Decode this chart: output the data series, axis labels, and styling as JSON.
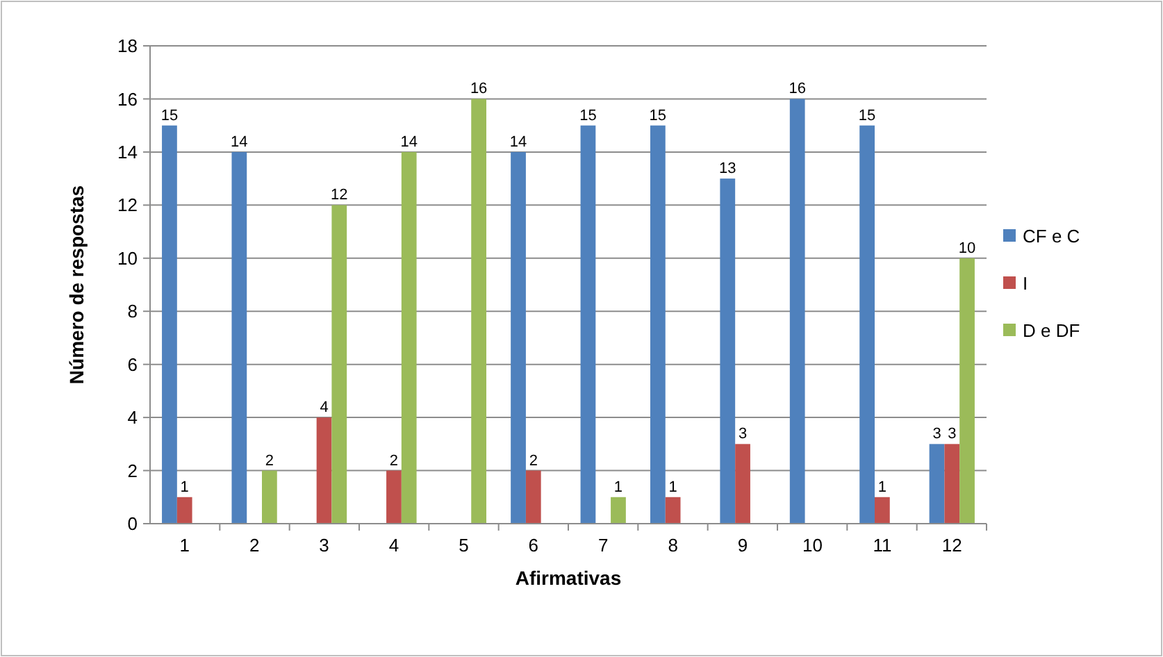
{
  "chart_data": {
    "type": "bar",
    "xlabel": "Afirmativas",
    "ylabel": "Número de respostas",
    "categories": [
      "1",
      "2",
      "3",
      "4",
      "5",
      "6",
      "7",
      "8",
      "9",
      "10",
      "11",
      "12"
    ],
    "series": [
      {
        "name": "CF e C",
        "color": "#4f81bd",
        "values": [
          15,
          14,
          0,
          0,
          0,
          14,
          15,
          15,
          13,
          16,
          15,
          3
        ],
        "value_labels": [
          "15",
          "14",
          null,
          null,
          null,
          "14",
          "15",
          "15",
          "13",
          "16",
          "15",
          "3"
        ]
      },
      {
        "name": "I",
        "color": "#c0504d",
        "values": [
          1,
          0,
          4,
          2,
          0,
          2,
          0,
          1,
          3,
          0,
          1,
          3
        ],
        "value_labels": [
          "1",
          null,
          "4",
          "2",
          null,
          "2",
          null,
          "1",
          "3",
          null,
          "1",
          "3"
        ]
      },
      {
        "name": "D e DF",
        "color": "#9bbb59",
        "values": [
          0,
          2,
          12,
          14,
          16,
          0,
          1,
          0,
          0,
          0,
          0,
          10
        ],
        "value_labels": [
          null,
          "2",
          "12",
          "14",
          "16",
          null,
          "1",
          null,
          null,
          null,
          null,
          "10"
        ]
      }
    ],
    "ylim": [
      0,
      18
    ],
    "yticks": [
      0,
      2,
      4,
      6,
      8,
      10,
      12,
      14,
      16,
      18
    ],
    "grid": "y",
    "legend": "right"
  }
}
